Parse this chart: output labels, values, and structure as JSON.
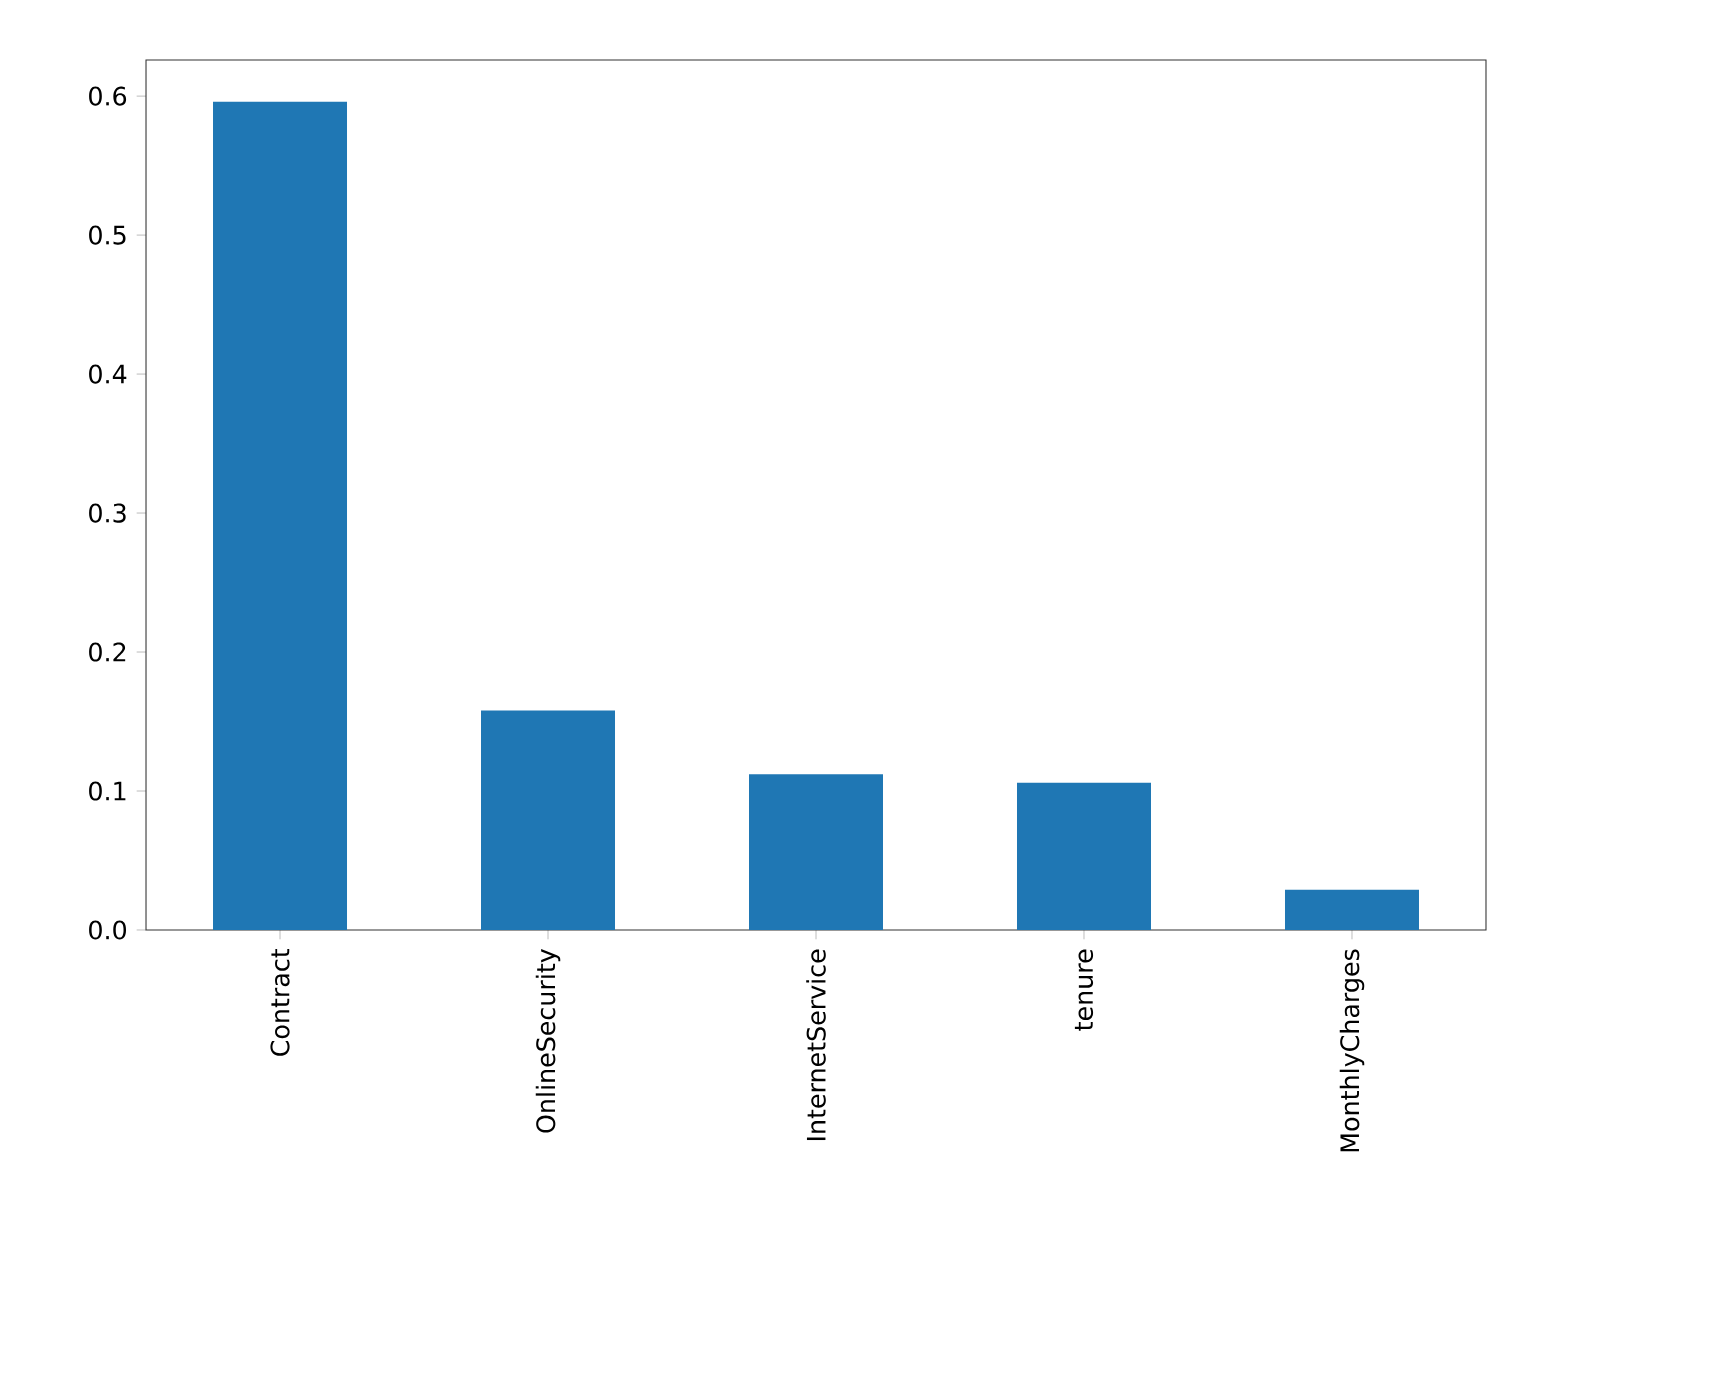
{
  "chart_data": {
    "type": "bar",
    "categories": [
      "Contract",
      "OnlineSecurity",
      "InternetService",
      "tenure",
      "MonthlyCharges"
    ],
    "values": [
      0.596,
      0.158,
      0.112,
      0.106,
      0.029
    ],
    "color": "#1f77b4",
    "ylim": [
      0,
      0.626
    ],
    "yticks": [
      {
        "value": 0,
        "label": "0.0"
      },
      0.1,
      0.2,
      0.3,
      0.4,
      0.5,
      0.6
    ],
    "grid": false
  }
}
